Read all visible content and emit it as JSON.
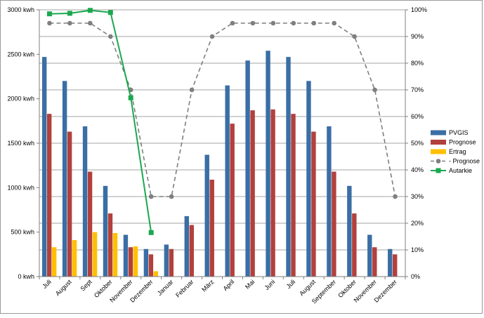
{
  "chart_data": {
    "type": "bar",
    "categories": [
      "Juli",
      "August",
      "Sept",
      "Oktober",
      "November",
      "Dezember",
      "Januar",
      "Februar",
      "März",
      "April",
      "Mai",
      "Juni",
      "Juli",
      "August",
      "September",
      "Oktober",
      "November",
      "Dezember"
    ],
    "title": "",
    "xlabel": "",
    "ylabel": "",
    "ylim": [
      0,
      3000
    ],
    "y_ticks": [
      0,
      500,
      1000,
      1500,
      2000,
      2500,
      3000
    ],
    "y_unit": "kwh",
    "y2lim": [
      0,
      100
    ],
    "y2_ticks": [
      0,
      10,
      20,
      30,
      40,
      50,
      60,
      70,
      80,
      90,
      100
    ],
    "y2_unit": "%",
    "grid": true,
    "legend_position": "right",
    "series": [
      {
        "name": "PVGIS",
        "type": "bar",
        "axis": "left",
        "color": "#3a6ea5",
        "values": [
          2470,
          2200,
          1690,
          1020,
          470,
          310,
          360,
          680,
          1370,
          2150,
          2430,
          2540,
          2470,
          2200,
          1690,
          1020,
          470,
          310
        ]
      },
      {
        "name": "Prognose",
        "type": "bar",
        "axis": "left",
        "color": "#b2403c",
        "values": [
          1830,
          1630,
          1180,
          710,
          330,
          250,
          310,
          580,
          1090,
          1720,
          1870,
          1880,
          1830,
          1630,
          1180,
          710,
          330,
          250
        ]
      },
      {
        "name": "Ertrag",
        "type": "bar",
        "axis": "left",
        "color": "#ffc000",
        "values": [
          330,
          410,
          500,
          490,
          340,
          60,
          null,
          null,
          null,
          null,
          null,
          null,
          null,
          null,
          null,
          null,
          null,
          null
        ]
      },
      {
        "name": "- Prognose",
        "type": "line",
        "axis": "right",
        "color": "#7f7f7f",
        "dashed": true,
        "marker": "circle",
        "values": [
          95,
          95,
          95,
          90,
          70,
          30,
          30,
          70,
          90,
          95,
          95,
          95,
          95,
          95,
          95,
          90,
          70,
          30
        ]
      },
      {
        "name": "Autarkie",
        "type": "line",
        "axis": "right",
        "color": "#1aa84f",
        "marker": "square",
        "values": [
          98.5,
          98.7,
          99.8,
          99.0,
          67.0,
          16.5,
          null,
          null,
          null,
          null,
          null,
          null,
          null,
          null,
          null,
          null,
          null,
          null
        ]
      }
    ]
  }
}
